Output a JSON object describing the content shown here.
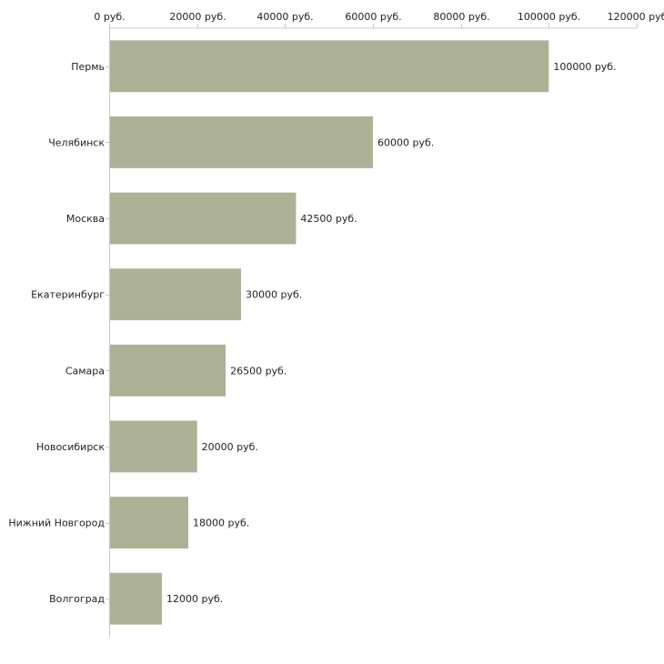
{
  "chart_data": {
    "type": "bar",
    "orientation": "horizontal",
    "categories": [
      "Пермь",
      "Челябинск",
      "Москва",
      "Екатеринбург",
      "Самара",
      "Новосибирск",
      "Нижний Новгород",
      "Волгоград"
    ],
    "values": [
      100000,
      60000,
      42500,
      30000,
      26500,
      20000,
      18000,
      12000
    ],
    "value_labels": [
      "100000 руб.",
      "60000 руб.",
      "42500 руб.",
      "30000 руб.",
      "26500 руб.",
      "20000 руб.",
      "18000 руб.",
      "12000 руб."
    ],
    "title": "",
    "xlabel": "",
    "ylabel": "",
    "xlim": [
      0,
      120000
    ],
    "x_ticks": [
      0,
      20000,
      40000,
      60000,
      80000,
      100000,
      120000
    ],
    "x_tick_labels": [
      "0 руб.",
      "20000 руб.",
      "40000 руб.",
      "60000 руб.",
      "80000 руб.",
      "100000 руб.",
      "120000 руб"
    ],
    "grid": false,
    "bar_color": "#adb297"
  }
}
